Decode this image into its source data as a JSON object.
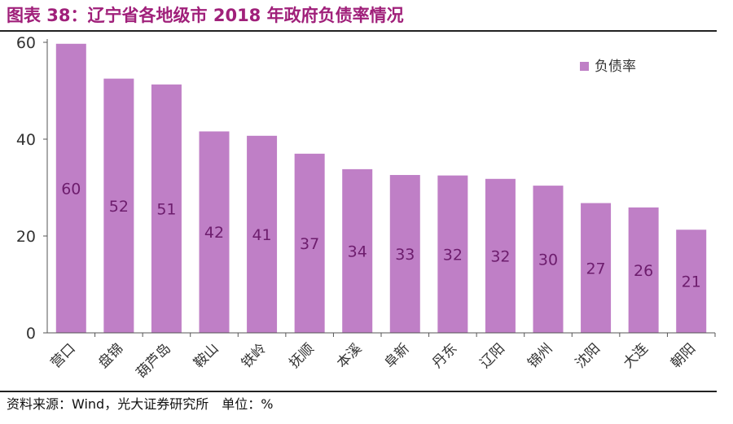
{
  "header": {
    "title": "图表 38：辽宁省各地级市 2018 年政府负债率情况"
  },
  "footer": {
    "source": "资料来源：Wind，光大证券研究所　单位：%"
  },
  "colors": {
    "bar": "#bf7fc6",
    "label": "#6d1d6d",
    "title": "#a0207a"
  },
  "chart_data": {
    "type": "bar",
    "title": "",
    "xlabel": "",
    "ylabel": "",
    "ylim": [
      0,
      60
    ],
    "yticks": [
      0,
      20,
      40,
      60
    ],
    "legend": {
      "position": "top-right",
      "label": "负债率"
    },
    "categories": [
      "营口",
      "盘锦",
      "葫芦岛",
      "鞍山",
      "铁岭",
      "抚顺",
      "本溪",
      "阜新",
      "丹东",
      "辽阳",
      "锦州",
      "沈阳",
      "大连",
      "朝阳"
    ],
    "values": [
      59.7,
      52.5,
      51.3,
      41.6,
      40.7,
      37.0,
      33.8,
      32.6,
      32.5,
      31.8,
      30.4,
      26.8,
      25.9,
      21.3
    ],
    "labels": [
      "60",
      "52",
      "51",
      "42",
      "41",
      "37",
      "34",
      "33",
      "32",
      "32",
      "30",
      "27",
      "26",
      "21"
    ],
    "series": [
      {
        "name": "负债率",
        "values": [
          59.7,
          52.5,
          51.3,
          41.6,
          40.7,
          37.0,
          33.8,
          32.6,
          32.5,
          31.8,
          30.4,
          26.8,
          25.9,
          21.3
        ]
      }
    ]
  }
}
